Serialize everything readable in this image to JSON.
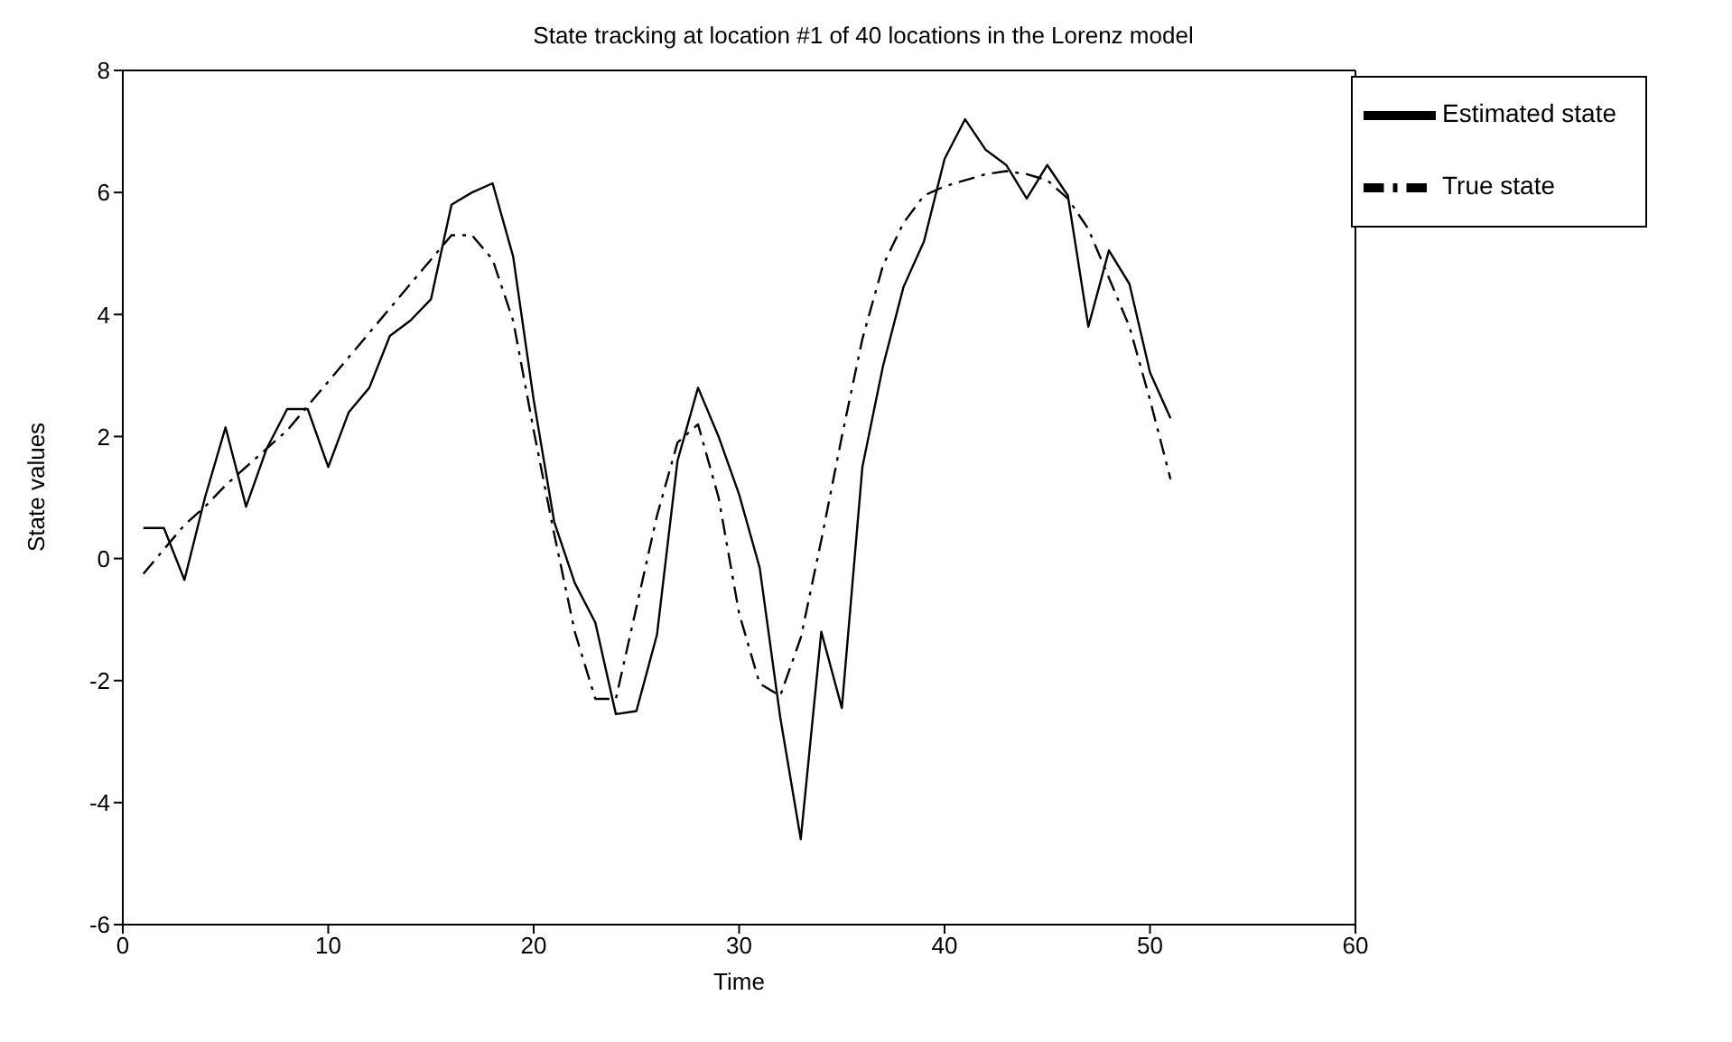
{
  "chart_data": {
    "type": "line",
    "title": "State tracking at location #1 of 40 locations in the Lorenz model",
    "xlabel": "Time",
    "ylabel": "State values",
    "x": [
      1,
      2,
      3,
      4,
      5,
      6,
      7,
      8,
      9,
      10,
      11,
      12,
      13,
      14,
      15,
      16,
      17,
      18,
      19,
      20,
      21,
      22,
      23,
      24,
      25,
      26,
      27,
      28,
      29,
      30,
      31,
      32,
      33,
      34,
      35,
      36,
      37,
      38,
      39,
      40,
      41,
      42,
      43,
      44,
      45,
      46,
      47,
      48,
      49,
      50,
      51
    ],
    "series": [
      {
        "name": "True state",
        "color": "#000000",
        "line_style": "dashdot",
        "values": [
          -0.25,
          0.15,
          0.55,
          0.85,
          1.2,
          1.5,
          1.8,
          2.1,
          2.5,
          2.9,
          3.3,
          3.7,
          4.1,
          4.5,
          4.9,
          5.3,
          5.3,
          4.9,
          3.9,
          2.1,
          0.4,
          -1.2,
          -2.3,
          -2.3,
          -0.8,
          0.7,
          1.9,
          2.2,
          1.0,
          -0.9,
          -2.05,
          -2.25,
          -1.3,
          0.3,
          2.0,
          3.6,
          4.8,
          5.5,
          5.95,
          6.1,
          6.2,
          6.3,
          6.35,
          6.3,
          6.2,
          5.9,
          5.4,
          4.6,
          3.8,
          2.6,
          1.3
        ]
      },
      {
        "name": "Estimated state",
        "color": "#000000",
        "line_style": "solid",
        "values": [
          0.5,
          0.5,
          -0.35,
          1.0,
          2.15,
          0.85,
          1.8,
          2.45,
          2.45,
          1.5,
          2.4,
          2.8,
          3.65,
          3.9,
          4.25,
          5.8,
          6.0,
          6.15,
          4.95,
          2.6,
          0.6,
          -0.4,
          -1.05,
          -2.55,
          -2.5,
          -1.25,
          1.6,
          2.8,
          2.0,
          1.05,
          -0.15,
          -2.6,
          -4.6,
          -1.2,
          -2.45,
          1.5,
          3.15,
          4.45,
          5.2,
          6.55,
          7.2,
          6.7,
          6.45,
          5.9,
          6.45,
          5.95,
          3.8,
          5.05,
          4.5,
          3.05,
          2.3
        ]
      }
    ],
    "xlim": [
      0,
      60
    ],
    "xticks": [
      0,
      10,
      20,
      30,
      40,
      50,
      60
    ],
    "ylim": [
      -6,
      8
    ],
    "yticks": [
      -6,
      -4,
      -2,
      0,
      2,
      4,
      6,
      8
    ],
    "grid": false,
    "legend": "top right",
    "marker": "none"
  }
}
